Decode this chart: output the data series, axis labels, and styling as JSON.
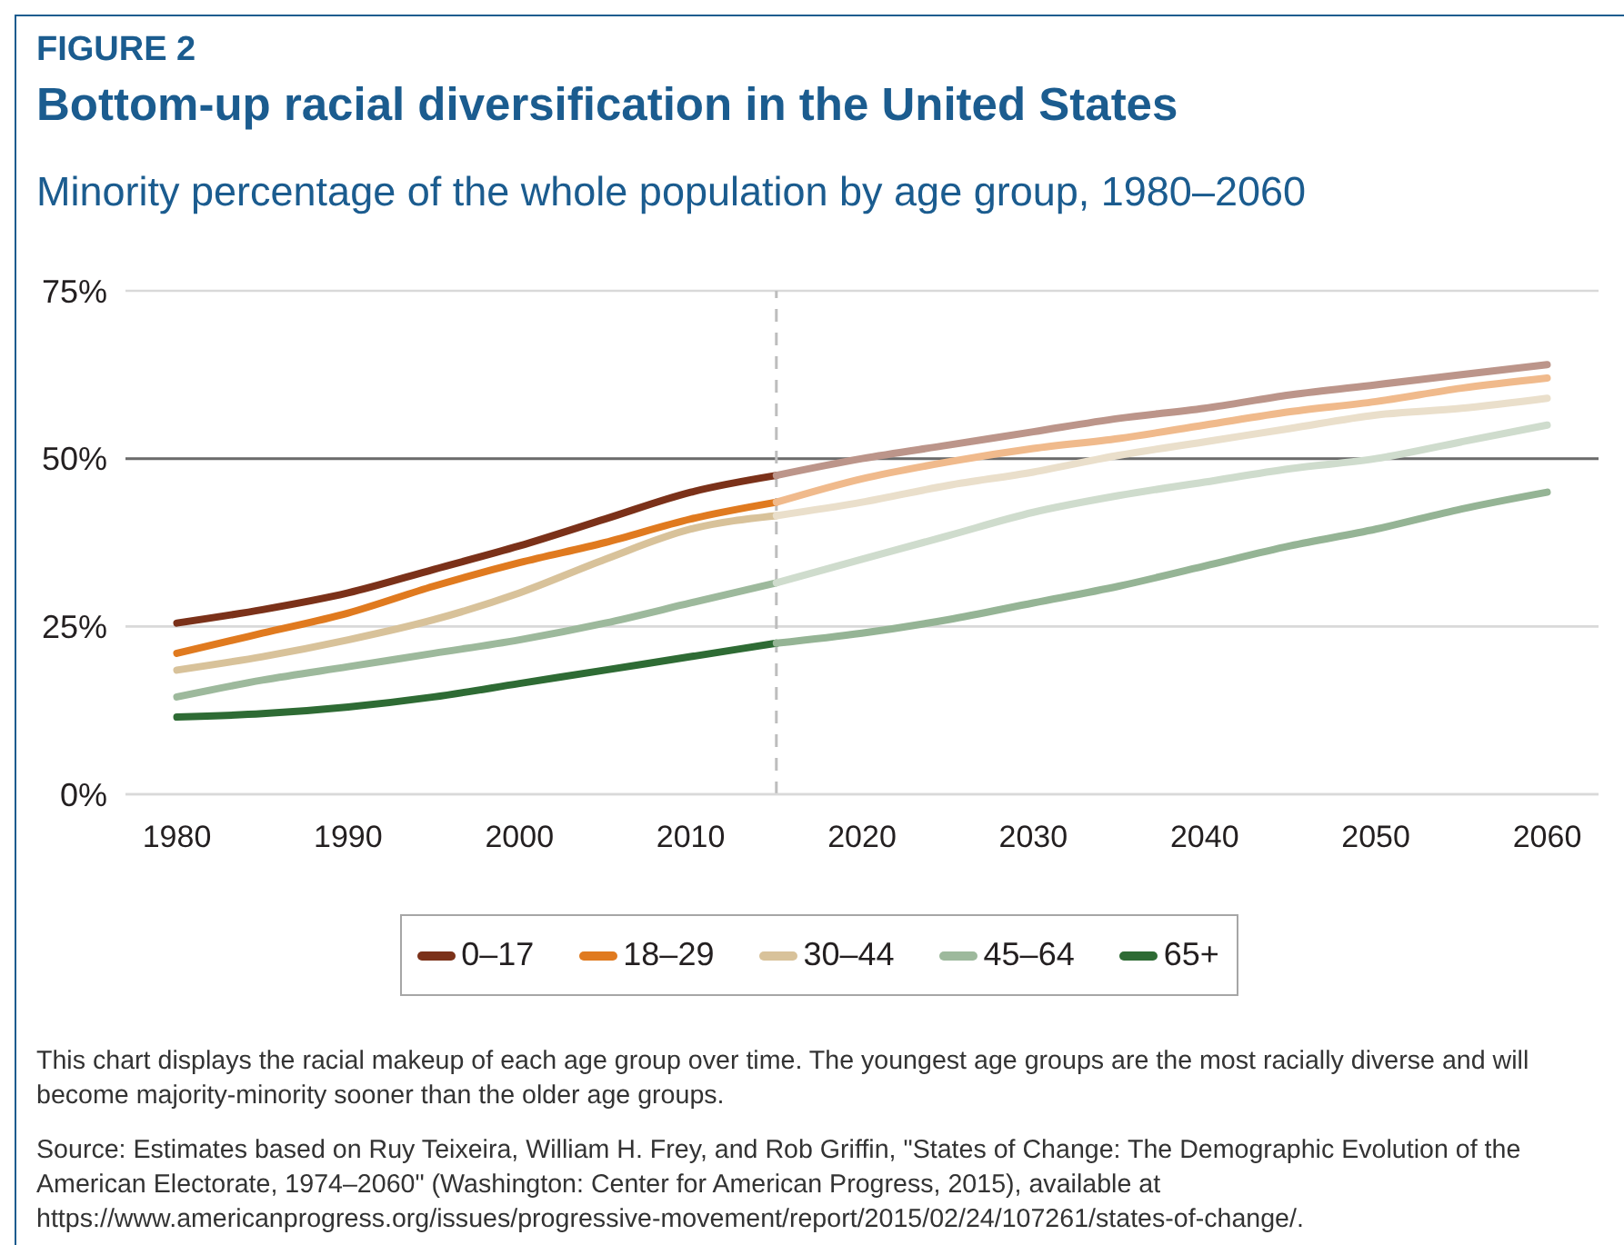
{
  "chart_data": {
    "type": "line",
    "title": "Bottom-up racial diversification in the United States",
    "subtitle": "Minority percentage of the whole population by age group, 1980–2060",
    "annotations": [
      "FIGURE 2",
      "This chart displays the racial makeup of each age group over time. The youngest age groups are the most racially diverse and will become majority-minority sooner than the older age groups.",
      "Source: Estimates based on Ruy Teixeira, William H. Frey, and Rob Griffin, \"States of Change: The Demographic Evolution of the American Electorate, 1974–2060\" (Washington: Center for American Progress, 2015), available at https://www.americanprogress.org/issues/progressive-movement/report/2015/02/24/107261/states-of-change/."
    ],
    "xlim": [
      1977,
      2063
    ],
    "xticks": [
      1980,
      1990,
      2000,
      2010,
      2020,
      2030,
      2040,
      2050,
      2060
    ],
    "ylim": [
      0,
      75
    ],
    "yticks": [
      {
        "value": 0,
        "label": "0%"
      },
      {
        "value": 25,
        "label": "25%"
      },
      {
        "value": 50,
        "label": "50%"
      },
      {
        "value": 75,
        "label": "75%"
      }
    ],
    "grid": "y",
    "legend": "bottom",
    "marker": "none",
    "line_style": "solid",
    "ref_lines": [
      {
        "axis": "y",
        "value": 50,
        "color": "#6b6b6b",
        "line_style": "solid"
      },
      {
        "axis": "x",
        "value": 2015,
        "color": "#bdbdbd",
        "line_style": "dashed"
      }
    ],
    "series": [
      {
        "name": "0–17",
        "color": "#7b3119",
        "x": [
          1980,
          1985,
          1990,
          1995,
          2000,
          2005,
          2010,
          2015
        ],
        "values": [
          25.5,
          27.5,
          30,
          33.5,
          37,
          41,
          45,
          47.5
        ]
      },
      {
        "name": "18–29",
        "color": "#e07a1f",
        "x": [
          1980,
          1985,
          1990,
          1995,
          2000,
          2005,
          2010,
          2015
        ],
        "values": [
          21,
          24,
          27,
          31,
          34.5,
          37.5,
          41,
          43.5
        ]
      },
      {
        "name": "30–44",
        "color": "#d8c29a",
        "x": [
          1980,
          1985,
          1990,
          1995,
          2000,
          2005,
          2010,
          2015
        ],
        "values": [
          18.5,
          20.5,
          23,
          26,
          30,
          35,
          39.5,
          41.5
        ]
      },
      {
        "name": "45–64",
        "color": "#9db99c",
        "x": [
          1980,
          1985,
          1990,
          1995,
          2000,
          2005,
          2010,
          2015
        ],
        "values": [
          14.5,
          17,
          19,
          21,
          23,
          25.5,
          28.5,
          31.5
        ]
      },
      {
        "name": "65+",
        "color": "#2e6b34",
        "x": [
          1980,
          1985,
          1990,
          1995,
          2000,
          2005,
          2010,
          2015
        ],
        "values": [
          11.5,
          12,
          13,
          14.5,
          16.5,
          18.5,
          20.5,
          22.5
        ]
      },
      {
        "color": "#bc958a",
        "x": [
          2015,
          2020,
          2025,
          2030,
          2035,
          2040,
          2045,
          2050,
          2055,
          2060
        ],
        "values": [
          47.5,
          50,
          52,
          54,
          56,
          57.5,
          59.5,
          61,
          62.5,
          64
        ]
      },
      {
        "color": "#f0ba8c",
        "x": [
          2015,
          2020,
          2025,
          2030,
          2035,
          2040,
          2045,
          2050,
          2055,
          2060
        ],
        "values": [
          43.5,
          47,
          49.5,
          51.5,
          53,
          55,
          57,
          58.5,
          60.5,
          62
        ]
      },
      {
        "color": "#eadfcb",
        "x": [
          2015,
          2020,
          2025,
          2030,
          2035,
          2040,
          2045,
          2050,
          2055,
          2060
        ],
        "values": [
          41.5,
          43.5,
          46,
          48,
          50.5,
          52.5,
          54.5,
          56.5,
          57.5,
          59
        ]
      },
      {
        "color": "#cfdccd",
        "x": [
          2015,
          2020,
          2025,
          2030,
          2035,
          2040,
          2045,
          2050,
          2055,
          2060
        ],
        "values": [
          31.5,
          35,
          38.5,
          42,
          44.5,
          46.5,
          48.5,
          50,
          52.5,
          55
        ]
      },
      {
        "color": "#95b495",
        "x": [
          2015,
          2020,
          2025,
          2030,
          2035,
          2040,
          2045,
          2050,
          2055,
          2060
        ],
        "values": [
          22.5,
          24,
          26,
          28.5,
          31,
          34,
          37,
          39.5,
          42.5,
          45
        ]
      }
    ]
  }
}
